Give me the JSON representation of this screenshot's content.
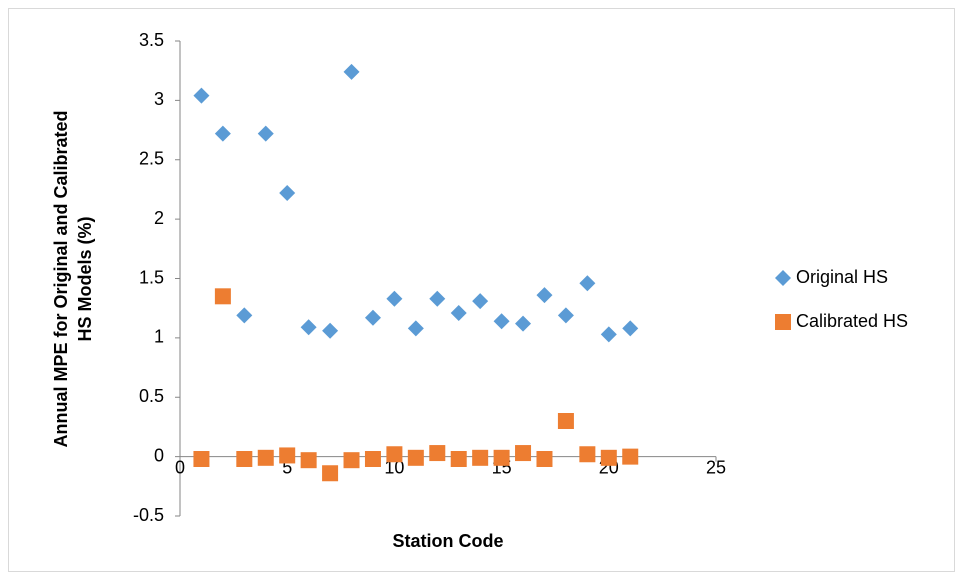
{
  "chart_data": {
    "type": "scatter",
    "xlabel": "Station Code",
    "ylabel": [
      "Annual MPE for Original and Calibrated",
      "HS Models (%)"
    ],
    "xlim": [
      0,
      25
    ],
    "xticks": [
      0,
      5,
      10,
      15,
      20,
      25
    ],
    "ylim": [
      -0.5,
      3.5
    ],
    "yticks": [
      -0.5,
      0,
      0.5,
      1,
      1.5,
      2,
      2.5,
      3,
      3.5
    ],
    "grid": false,
    "legend": "right",
    "series": [
      {
        "name": "Original HS",
        "color": "#5b9bd5",
        "marker": "diamond",
        "x": [
          1,
          2,
          3,
          4,
          5,
          6,
          7,
          8,
          9,
          10,
          11,
          12,
          13,
          14,
          15,
          16,
          17,
          18,
          19,
          20,
          21
        ],
        "values": [
          3.04,
          2.72,
          1.19,
          2.72,
          2.22,
          1.09,
          1.06,
          3.24,
          1.17,
          1.33,
          1.08,
          1.33,
          1.21,
          1.31,
          1.14,
          1.12,
          1.36,
          1.19,
          1.46,
          1.03,
          1.08
        ]
      },
      {
        "name": "Calibrated HS",
        "color": "#ed7d31",
        "marker": "square",
        "x": [
          1,
          2,
          3,
          4,
          5,
          6,
          7,
          8,
          9,
          10,
          11,
          12,
          13,
          14,
          15,
          16,
          17,
          18,
          19,
          20,
          21
        ],
        "values": [
          -0.02,
          1.35,
          -0.02,
          -0.01,
          0.01,
          -0.03,
          -0.14,
          -0.03,
          -0.02,
          0.02,
          -0.01,
          0.03,
          -0.02,
          -0.01,
          -0.01,
          0.03,
          -0.02,
          0.3,
          0.02,
          -0.01,
          0.0
        ]
      }
    ]
  }
}
